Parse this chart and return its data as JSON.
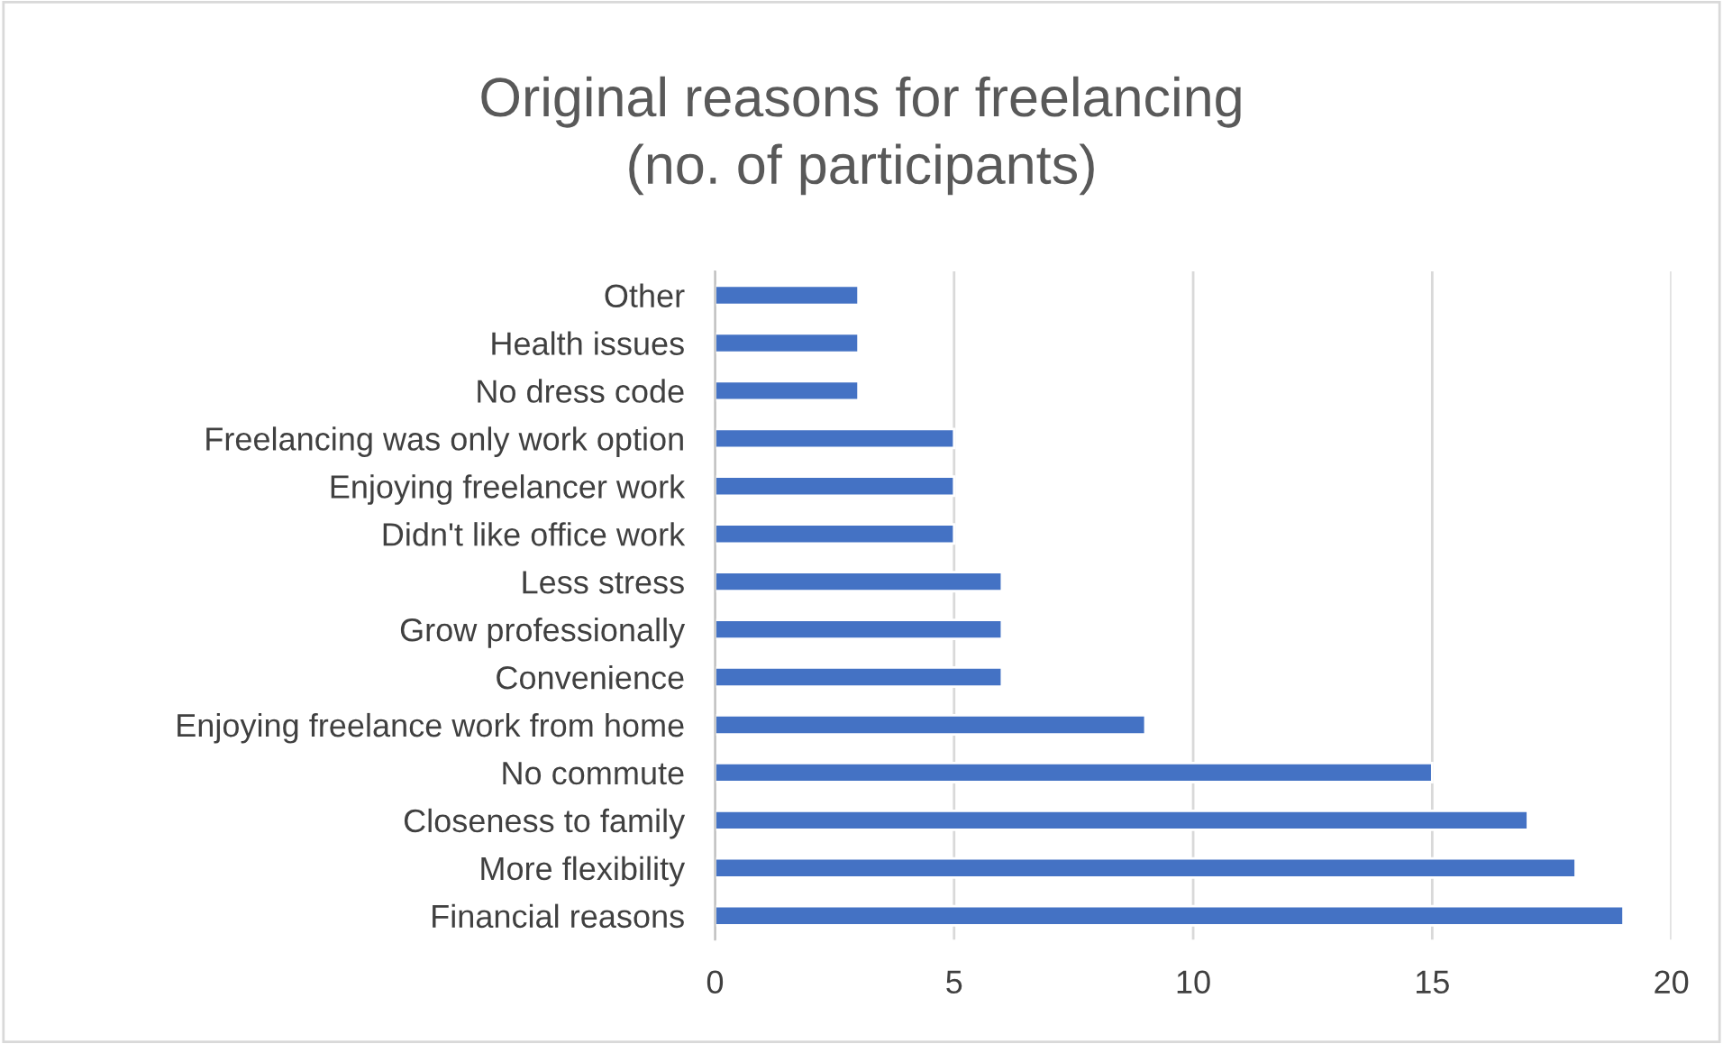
{
  "chart_data": {
    "type": "bar",
    "orientation": "horizontal",
    "title": "Original reasons for freelancing\n(no. of participants)",
    "categories": [
      "Other",
      "Health issues",
      "No dress code",
      "Freelancing was only work option",
      "Enjoying freelancer work",
      "Didn't like office work",
      "Less stress",
      "Grow professionally",
      "Convenience",
      "Enjoying freelance work from home",
      "No commute",
      "Closeness to family",
      "More flexibility",
      "Financial reasons"
    ],
    "values": [
      3,
      3,
      3,
      5,
      5,
      5,
      6,
      6,
      6,
      9,
      15,
      17,
      18,
      19
    ],
    "color": "#4472c4",
    "xlim": [
      0,
      20
    ],
    "xticks": [
      0,
      5,
      10,
      15,
      20
    ],
    "grid": "x",
    "legend": false
  }
}
